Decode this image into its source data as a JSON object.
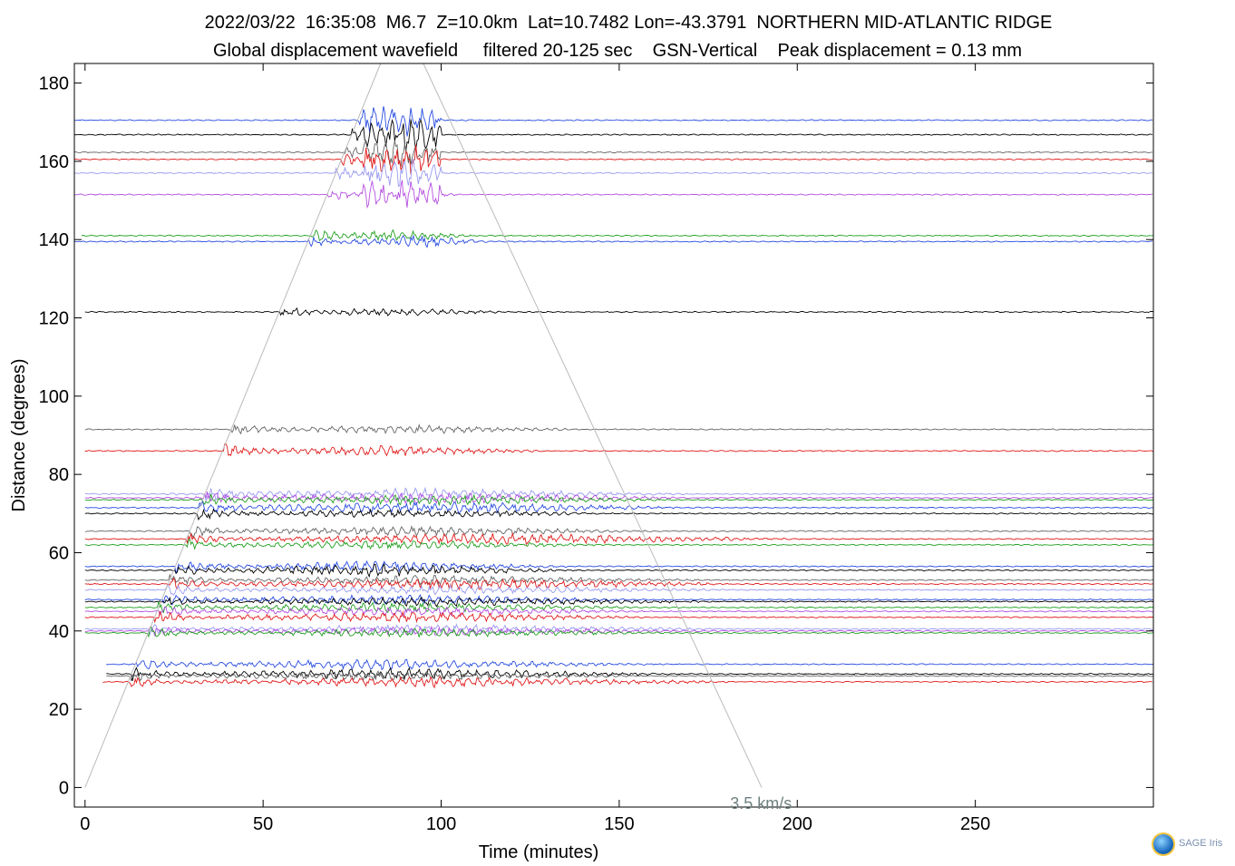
{
  "header": {
    "line1": "2022/03/22  16:35:08  M6.7  Z=10.0km  Lat=10.7482 Lon=-43.3791  NORTHERN MID-ATLANTIC RIDGE",
    "line2": "Global displacement wavefield     filtered 20-125 sec    GSN-Vertical    Peak displacement = 0.13 mm"
  },
  "logo": {
    "brand": "SAGE",
    "brand2": "Iris"
  },
  "chart_data": {
    "type": "line",
    "xlabel": "Time (minutes)",
    "ylabel": "Distance (degrees)",
    "xlim": [
      -3,
      300
    ],
    "ylim": [
      -5,
      185
    ],
    "xticks": [
      0,
      50,
      100,
      150,
      200,
      250
    ],
    "yticks": [
      0,
      20,
      40,
      60,
      80,
      100,
      120,
      140,
      160,
      180
    ],
    "grid": false,
    "annotation": {
      "text": "3.5 km/s",
      "x": 200,
      "y": -2
    },
    "reference_lines": [
      {
        "points": [
          [
            0,
            0
          ],
          [
            83,
            185
          ]
        ]
      },
      {
        "points": [
          [
            95,
            185
          ],
          [
            190,
            0
          ]
        ]
      }
    ],
    "traces": [
      {
        "distance": 170.5,
        "color": "#2a4de0",
        "t0": -3,
        "burst": [
          80,
          100
        ],
        "amp": 1.2
      },
      {
        "distance": 166.8,
        "color": "#000000",
        "t0": -3,
        "burst": [
          80,
          100
        ],
        "amp": 1.4
      },
      {
        "distance": 162.3,
        "color": "#666666",
        "t0": -3,
        "burst": [
          80,
          98
        ],
        "amp": 1.1
      },
      {
        "distance": 160.5,
        "color": "#e01b1b",
        "t0": -3,
        "burst": [
          82,
          100
        ],
        "amp": 0.9
      },
      {
        "distance": 157.0,
        "color": "#9a9af0",
        "t0": -3,
        "burst": [
          82,
          100
        ],
        "amp": 0.8
      },
      {
        "distance": 151.5,
        "color": "#b44fe0",
        "t0": -3,
        "burst": [
          75,
          105
        ],
        "amp": 1.0
      },
      {
        "distance": 141.0,
        "color": "#22a022",
        "t0": -1,
        "burst": [
          65,
          110
        ],
        "amp": 1.2
      },
      {
        "distance": 139.5,
        "color": "#2a4de0",
        "t0": -3,
        "burst": [
          70,
          115
        ],
        "amp": 1.4
      },
      {
        "distance": 121.5,
        "color": "#000000",
        "t0": 0,
        "burst": [
          55,
          120
        ],
        "amp": 0.9
      },
      {
        "distance": 91.5,
        "color": "#666666",
        "t0": 0,
        "burst": [
          40,
          140
        ],
        "amp": 1.0
      },
      {
        "distance": 86.0,
        "color": "#e01b1b",
        "t0": 0,
        "burst": [
          38,
          130
        ],
        "amp": 1.2
      },
      {
        "distance": 75.0,
        "color": "#9a9af0",
        "t0": 0,
        "burst": [
          20,
          170
        ],
        "amp": 1.3
      },
      {
        "distance": 74.0,
        "color": "#b44fe0",
        "t0": 0,
        "burst": [
          20,
          170
        ],
        "amp": 1.3
      },
      {
        "distance": 73.5,
        "color": "#22a022",
        "t0": 0,
        "burst": [
          30,
          165
        ],
        "amp": 1.2
      },
      {
        "distance": 71.5,
        "color": "#2a4de0",
        "t0": 0,
        "burst": [
          30,
          170
        ],
        "amp": 1.5
      },
      {
        "distance": 70.0,
        "color": "#000000",
        "t0": 0,
        "burst": [
          30,
          150
        ],
        "amp": 1.0
      },
      {
        "distance": 65.5,
        "color": "#666666",
        "t0": 0,
        "burst": [
          28,
          160
        ],
        "amp": 1.1
      },
      {
        "distance": 63.5,
        "color": "#e01b1b",
        "t0": 0,
        "burst": [
          30,
          200
        ],
        "amp": 1.3
      },
      {
        "distance": 62.0,
        "color": "#22a022",
        "t0": 0,
        "burst": [
          25,
          150
        ],
        "amp": 1.0
      },
      {
        "distance": 56.5,
        "color": "#2a4de0",
        "t0": 0,
        "burst": [
          25,
          140
        ],
        "amp": 1.2
      },
      {
        "distance": 55.5,
        "color": "#000000",
        "t0": 0,
        "burst": [
          25,
          140
        ],
        "amp": 1.4
      },
      {
        "distance": 53.0,
        "color": "#666666",
        "t0": 0,
        "burst": [
          25,
          175
        ],
        "amp": 1.1
      },
      {
        "distance": 52.0,
        "color": "#e01b1b",
        "t0": 0,
        "burst": [
          25,
          185
        ],
        "amp": 1.3
      },
      {
        "distance": 50.5,
        "color": "#9a9af0",
        "t0": 0,
        "burst": [
          25,
          180
        ],
        "amp": 1.0
      },
      {
        "distance": 48.0,
        "color": "#2a4de0",
        "t0": 0,
        "burst": [
          20,
          160
        ],
        "amp": 1.1
      },
      {
        "distance": 47.5,
        "color": "#000000",
        "t0": 0,
        "burst": [
          20,
          180
        ],
        "amp": 1.0
      },
      {
        "distance": 46.0,
        "color": "#22a022",
        "t0": 0,
        "burst": [
          20,
          160
        ],
        "amp": 1.1
      },
      {
        "distance": 45.0,
        "color": "#b44fe0",
        "t0": 0,
        "burst": [
          20,
          160
        ],
        "amp": 1.0
      },
      {
        "distance": 43.5,
        "color": "#e01b1b",
        "t0": 0,
        "burst": [
          20,
          160
        ],
        "amp": 1.2
      },
      {
        "distance": 40.5,
        "color": "#9a9af0",
        "t0": 0,
        "burst": [
          20,
          180
        ],
        "amp": 1.1
      },
      {
        "distance": 40.0,
        "color": "#b44fe0",
        "t0": 0,
        "burst": [
          20,
          180
        ],
        "amp": 1.0
      },
      {
        "distance": 39.5,
        "color": "#22a022",
        "t0": 0,
        "burst": [
          20,
          170
        ],
        "amp": 0.9
      },
      {
        "distance": 31.5,
        "color": "#2a4de0",
        "t0": 6,
        "burst": [
          13,
          160
        ],
        "amp": 1.2
      },
      {
        "distance": 29.0,
        "color": "#000000",
        "t0": 6,
        "burst": [
          13,
          165
        ],
        "amp": 1.3
      },
      {
        "distance": 28.5,
        "color": "#666666",
        "t0": 6,
        "burst": [
          13,
          160
        ],
        "amp": 1.0
      },
      {
        "distance": 27.0,
        "color": "#e01b1b",
        "t0": 5,
        "burst": [
          13,
          185
        ],
        "amp": 1.2
      }
    ]
  }
}
